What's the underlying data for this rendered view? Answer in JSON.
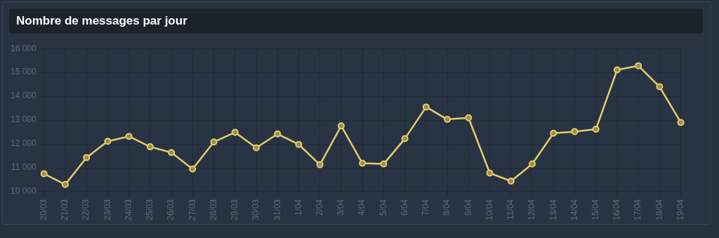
{
  "chart_data": {
    "type": "line",
    "title": "Nombre de messages par jour",
    "categories": [
      "20/03",
      "21/03",
      "22/03",
      "23/03",
      "24/03",
      "25/03",
      "26/03",
      "27/03",
      "28/03",
      "29/03",
      "30/03",
      "31/03",
      "1/04",
      "2/04",
      "3/04",
      "4/04",
      "5/04",
      "6/04",
      "7/04",
      "8/04",
      "9/04",
      "10/04",
      "11/04",
      "12/04",
      "13/04",
      "14/04",
      "15/04",
      "16/04",
      "17/04",
      "18/04",
      "19/04"
    ],
    "series": [
      {
        "color": "#e6cc6a",
        "values": [
          10750,
          10300,
          11430,
          12110,
          12320,
          11880,
          11640,
          10950,
          12080,
          12490,
          11840,
          12420,
          11980,
          11130,
          12760,
          11190,
          11160,
          12220,
          13550,
          13030,
          13100,
          10780,
          10440,
          11160,
          12450,
          12520,
          12620,
          15110,
          15280,
          14400,
          12900
        ]
      }
    ],
    "ylim": [
      10000,
      16000
    ],
    "yticks": [
      {
        "value": 10000,
        "label": "10 000"
      },
      {
        "value": 11000,
        "label": "11 000"
      },
      {
        "value": 12000,
        "label": "12 000"
      },
      {
        "value": 13000,
        "label": "13 000"
      },
      {
        "value": 14000,
        "label": "14 000"
      },
      {
        "value": 15000,
        "label": "15 000"
      },
      {
        "value": 16000,
        "label": "16 000"
      }
    ],
    "grid": true,
    "legend": false,
    "marker": "circle",
    "line_style": "solid"
  }
}
